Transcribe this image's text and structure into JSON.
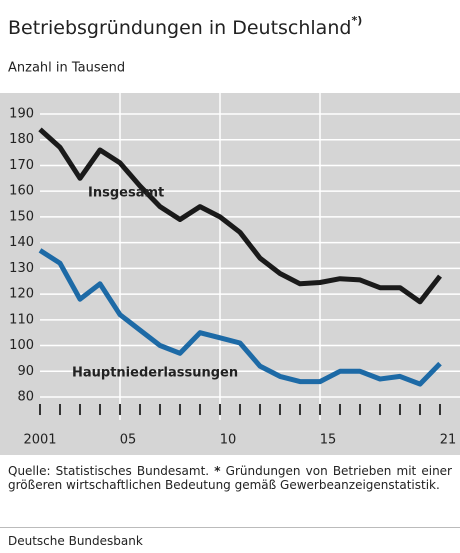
{
  "chart_data": {
    "type": "line",
    "title": "Betriebsgründungen in Deutschland",
    "title_note": "*)",
    "subtitle": "Anzahl in Tausend",
    "x": [
      2001,
      2002,
      2003,
      2004,
      2005,
      2006,
      2007,
      2008,
      2009,
      2010,
      2011,
      2012,
      2013,
      2014,
      2015,
      2016,
      2017,
      2018,
      2019,
      2020,
      2021
    ],
    "series": [
      {
        "name": "Insgesamt",
        "color": "#1a1a1a",
        "values": [
          184,
          177,
          165,
          176,
          171,
          162,
          154,
          149,
          154,
          150,
          144,
          134,
          128,
          124,
          124.5,
          126,
          125.5,
          122.5,
          122.5,
          117,
          127
        ]
      },
      {
        "name": "Hauptniederlassungen",
        "color": "#1d6aa6",
        "values": [
          137,
          132,
          118,
          124,
          112,
          106,
          100,
          97,
          105,
          103,
          101,
          92,
          88,
          86,
          86,
          90,
          90,
          87,
          88,
          85,
          93
        ]
      }
    ],
    "xlim": [
      1999,
      2022
    ],
    "xticks": [
      {
        "value": 2001,
        "label": "2001"
      },
      {
        "value": 2005,
        "label": "05"
      },
      {
        "value": 2010,
        "label": "10"
      },
      {
        "value": 2015,
        "label": "15"
      },
      {
        "value": 2021,
        "label": "21"
      }
    ],
    "xminor": [
      2001,
      2002,
      2003,
      2004,
      2005,
      2006,
      2007,
      2008,
      2009,
      2010,
      2011,
      2012,
      2013,
      2014,
      2015,
      2016,
      2017,
      2018,
      2019,
      2020,
      2021
    ],
    "xgrid": [
      2005,
      2010,
      2015
    ],
    "ylim": [
      80,
      190
    ],
    "yticks": [
      80,
      90,
      100,
      110,
      120,
      130,
      140,
      150,
      160,
      170,
      180,
      190
    ],
    "grid": true,
    "source": "Quelle: Statistisches Bundesamt.",
    "footnote_marker": "*",
    "footnote": "Gründungen von Betrieben mit einer größeren wirtschaftlichen Bedeutung gemäß Gewerbeanzeigenstatistik.",
    "publisher": "Deutsche Bundesbank"
  }
}
